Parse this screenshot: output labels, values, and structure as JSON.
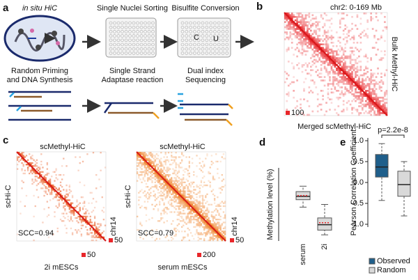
{
  "panel_labels": [
    "a",
    "b",
    "c",
    "d",
    "e"
  ],
  "schematic": {
    "top": [
      "in situ HiC",
      "Single Nuclei Sorting",
      "Bisulfite Conversion"
    ],
    "bottom": [
      [
        "Random Priming",
        "and DNA Synthesis"
      ],
      [
        "Single Strand",
        "Adaptase reaction"
      ],
      [
        "Dual index",
        "Sequencing"
      ]
    ],
    "bisulfite_marks": [
      "C",
      "U"
    ]
  },
  "bulk_map": {
    "region": "chr2: 0-169 Mb",
    "title": "Bulk Methyl-HiC",
    "scale": "100",
    "caption": "Merged scMethyl-HiC"
  },
  "single_cell_maps": [
    {
      "top": "scMethyl-HiC",
      "left": "scHi-C",
      "chrom": "chr14",
      "side_scale": "50",
      "scc": "SCC=0.94",
      "caption": "2i mESCs",
      "bottom_scale": "50"
    },
    {
      "top": "scMethyl-HiC",
      "left": "scHi-C",
      "chrom": "chr14",
      "side_scale": "50",
      "scc": "SCC=0.79",
      "caption": "serum mESCs",
      "bottom_scale": "200"
    }
  ],
  "chart_data": [
    {
      "type": "box",
      "ylabel": "Methylation level (%)",
      "categories": [
        "serum",
        "2i"
      ],
      "boxes": [
        {
          "low": 46,
          "q1": 57,
          "median": 62,
          "mean": 63,
          "q3": 69,
          "high": 77
        },
        {
          "low": 5,
          "q1": 12,
          "median": 20,
          "mean": 23,
          "q3": 30,
          "high": 50
        }
      ],
      "color": "#d9d9d9",
      "mean_color": "#e8262a",
      "ylim": [
        0,
        100
      ]
    },
    {
      "type": "box",
      "ylabel": "Pearson Correlation Coefficient",
      "annotation": "p=2.2e-8",
      "series": [
        {
          "name": "Observed",
          "color": "#1f5f8b",
          "values": {
            "low": -0.43,
            "q1": 0.13,
            "median": 0.37,
            "q3": 0.67,
            "high": 0.93
          }
        },
        {
          "name": "Random",
          "color": "#d9d9d9",
          "values": {
            "low": -0.8,
            "q1": -0.33,
            "median": -0.05,
            "q3": 0.27,
            "high": 0.5
          }
        }
      ],
      "ylim": [
        -1,
        1
      ],
      "yticks": [
        {
          "value": 1,
          "label": "1.0"
        },
        0.5,
        {
          "value": 0,
          "label": "0.0"
        },
        -0.5,
        {
          "value": -1,
          "label": "-1.0"
        }
      ],
      "legend": "bottom-left"
    }
  ]
}
